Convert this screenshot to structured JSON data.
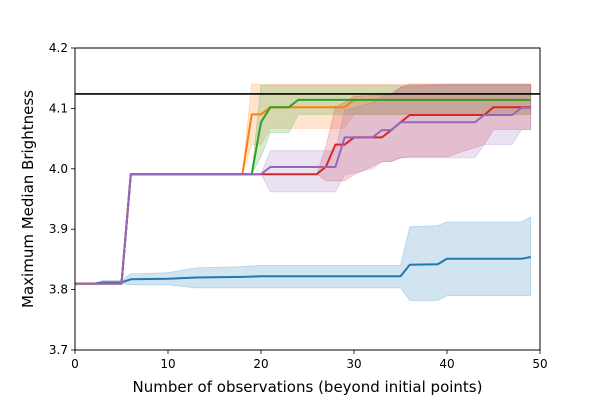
{
  "chart_data": {
    "type": "line",
    "title": "",
    "xlabel": "Number of observations (beyond initial points)",
    "ylabel": "Maximum Median Brightness",
    "xlim": [
      0,
      50
    ],
    "ylim": [
      3.7,
      4.2
    ],
    "xticks": [
      0,
      10,
      20,
      30,
      40,
      50
    ],
    "yticks": [
      3.7,
      3.8,
      3.9,
      4.0,
      4.1,
      4.2
    ],
    "xtick_labels": [
      "0",
      "10",
      "20",
      "30",
      "40",
      "50"
    ],
    "ytick_labels": [
      "3.7",
      "3.8",
      "3.9",
      "4.0",
      "4.1",
      "4.2"
    ],
    "grid": false,
    "legend": "none",
    "reference_line": {
      "y": 4.124,
      "color": "#000000"
    },
    "series": [
      {
        "color": "#1f77b4",
        "x": [
          0,
          2,
          3,
          5,
          6,
          10,
          13,
          18,
          20,
          25,
          30,
          35,
          36,
          39,
          40,
          45,
          48,
          49
        ],
        "y": [
          3.81,
          3.81,
          3.812,
          3.812,
          3.817,
          3.818,
          3.82,
          3.821,
          3.822,
          3.822,
          3.822,
          3.822,
          3.841,
          3.842,
          3.851,
          3.851,
          3.851,
          3.854
        ],
        "lower": [
          3.81,
          3.81,
          3.81,
          3.81,
          3.808,
          3.808,
          3.803,
          3.803,
          3.803,
          3.803,
          3.803,
          3.803,
          3.782,
          3.782,
          3.79,
          3.79,
          3.79,
          3.79
        ],
        "upper": [
          3.81,
          3.81,
          3.815,
          3.815,
          3.826,
          3.828,
          3.836,
          3.838,
          3.84,
          3.84,
          3.84,
          3.84,
          3.904,
          3.906,
          3.912,
          3.912,
          3.912,
          3.92
        ]
      },
      {
        "color": "#ff7f0e",
        "x": [
          0,
          5,
          6,
          10,
          15,
          18,
          19,
          20,
          21,
          25,
          29,
          30,
          35,
          40,
          45,
          49
        ],
        "y": [
          3.81,
          3.81,
          3.991,
          3.991,
          3.991,
          3.991,
          4.09,
          4.09,
          4.102,
          4.102,
          4.102,
          4.114,
          4.114,
          4.114,
          4.114,
          4.114
        ],
        "lower": [
          3.81,
          3.81,
          3.991,
          3.991,
          3.991,
          3.991,
          4.04,
          4.04,
          4.067,
          4.067,
          4.067,
          4.09,
          4.09,
          4.09,
          4.09,
          4.09
        ],
        "upper": [
          3.81,
          3.81,
          3.991,
          3.991,
          3.991,
          3.991,
          4.14,
          4.14,
          4.14,
          4.14,
          4.14,
          4.14,
          4.14,
          4.14,
          4.14,
          4.14
        ]
      },
      {
        "color": "#2ca02c",
        "x": [
          0,
          5,
          6,
          10,
          15,
          19,
          20,
          21,
          23,
          24,
          30,
          35,
          40,
          45,
          49
        ],
        "y": [
          3.81,
          3.81,
          3.991,
          3.991,
          3.991,
          3.991,
          4.077,
          4.102,
          4.102,
          4.114,
          4.114,
          4.114,
          4.114,
          4.114,
          4.114
        ],
        "lower": [
          3.81,
          3.81,
          3.991,
          3.991,
          3.991,
          3.991,
          4.02,
          4.06,
          4.06,
          4.09,
          4.09,
          4.09,
          4.09,
          4.09,
          4.09
        ],
        "upper": [
          3.81,
          3.81,
          3.991,
          3.991,
          3.991,
          3.991,
          4.138,
          4.138,
          4.138,
          4.138,
          4.138,
          4.138,
          4.138,
          4.138,
          4.138
        ]
      },
      {
        "color": "#d62728",
        "x": [
          0,
          5,
          6,
          10,
          15,
          20,
          24,
          26,
          27,
          28,
          29,
          30,
          33,
          34,
          35,
          36,
          40,
          44,
          45,
          49
        ],
        "y": [
          3.81,
          3.81,
          3.991,
          3.991,
          3.991,
          3.991,
          3.991,
          3.991,
          4.004,
          4.04,
          4.04,
          4.052,
          4.052,
          4.064,
          4.077,
          4.089,
          4.089,
          4.089,
          4.102,
          4.102
        ],
        "lower": [
          3.81,
          3.81,
          3.991,
          3.991,
          3.991,
          3.991,
          3.991,
          3.991,
          3.98,
          3.98,
          3.98,
          3.99,
          4.012,
          4.012,
          4.018,
          4.02,
          4.02,
          4.04,
          4.065,
          4.065
        ],
        "upper": [
          3.81,
          3.81,
          3.991,
          3.991,
          3.991,
          3.991,
          3.991,
          3.991,
          4.038,
          4.102,
          4.11,
          4.12,
          4.122,
          4.122,
          4.135,
          4.14,
          4.14,
          4.14,
          4.14,
          4.14
        ]
      },
      {
        "color": "#9467bd",
        "x": [
          0,
          5,
          6,
          10,
          15,
          19,
          20,
          21,
          25,
          27,
          28,
          29,
          32,
          33,
          34,
          35,
          40,
          43,
          44,
          47,
          48,
          49
        ],
        "y": [
          3.81,
          3.81,
          3.991,
          3.991,
          3.991,
          3.991,
          3.991,
          4.003,
          4.003,
          4.003,
          4.003,
          4.052,
          4.052,
          4.064,
          4.064,
          4.077,
          4.077,
          4.077,
          4.089,
          4.089,
          4.101,
          4.101
        ],
        "lower": [
          3.81,
          3.81,
          3.991,
          3.991,
          3.991,
          3.991,
          3.991,
          3.962,
          3.962,
          3.962,
          3.962,
          3.99,
          4.0,
          4.012,
          4.012,
          4.018,
          4.018,
          4.018,
          4.04,
          4.04,
          4.065,
          4.065
        ],
        "upper": [
          3.81,
          3.81,
          3.991,
          3.991,
          3.991,
          3.991,
          3.991,
          4.03,
          4.03,
          4.03,
          4.03,
          4.097,
          4.11,
          4.12,
          4.125,
          4.135,
          4.14,
          4.14,
          4.14,
          4.14,
          4.14,
          4.14
        ]
      }
    ]
  }
}
